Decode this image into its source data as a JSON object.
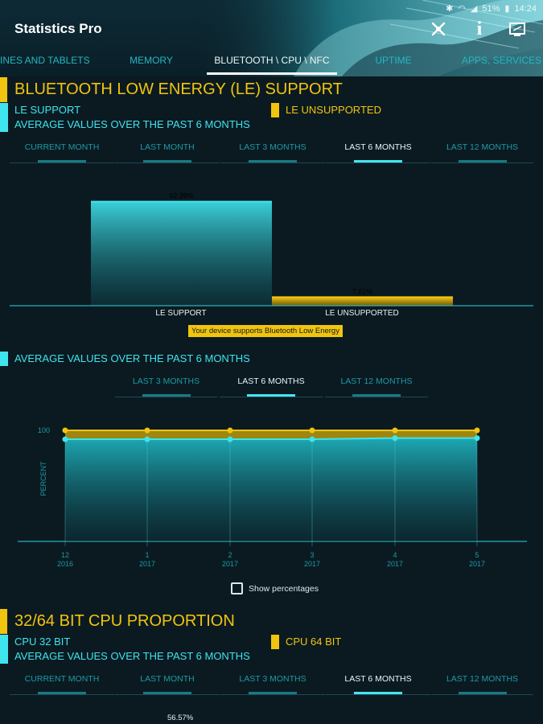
{
  "status_bar": {
    "battery": "51%",
    "time": "14:24"
  },
  "app": {
    "title": "Statistics Pro"
  },
  "actions": [
    {
      "name": "tools-icon",
      "glyph": "✱"
    },
    {
      "name": "info-icon",
      "glyph": "i"
    },
    {
      "name": "screen-icon",
      "glyph": "▣"
    }
  ],
  "tabs": [
    "INES AND TABLETS",
    "MEMORY",
    "BLUETOOTH \\ CPU \\ NFC",
    "UPTIME",
    "APPS, SERVICES"
  ],
  "active_tab": 2,
  "colors": {
    "accent_cyan": "#3fe4ee",
    "accent_yellow": "#f1c40f",
    "background": "#0b1a21"
  },
  "section1": {
    "title": "BLUETOOTH LOW ENERGY (LE) SUPPORT",
    "legend_a": "LE SUPPORT",
    "legend_b": "LE UNSUPPORTED",
    "subtitle": "AVERAGE VALUES OVER THE PAST 6 MONTHS",
    "periods": [
      "CURRENT MONTH",
      "LAST MONTH",
      "LAST 3 MONTHS",
      "LAST 6 MONTHS",
      "LAST 12 MONTHS"
    ],
    "active_period": 3,
    "note": "Your device supports Bluetooth Low Energy"
  },
  "section2": {
    "subtitle": "AVERAGE VALUES OVER THE PAST 6 MONTHS",
    "periods": [
      "LAST 3 MONTHS",
      "LAST 6 MONTHS",
      "LAST 12 MONTHS"
    ],
    "active_period": 1,
    "checkbox_label": "Show percentages",
    "checkbox_checked": false
  },
  "section3": {
    "title": "32/64 BIT CPU PROPORTION",
    "legend_a": "CPU 32 BIT",
    "legend_b": "CPU 64 BIT",
    "subtitle": "AVERAGE VALUES OVER THE PAST 6 MONTHS",
    "periods": [
      "CURRENT MONTH",
      "LAST MONTH",
      "LAST 3 MONTHS",
      "LAST 6 MONTHS",
      "LAST 12 MONTHS"
    ],
    "active_period": 3,
    "partial_value_label": "56.57%"
  },
  "chart_data": [
    {
      "type": "bar",
      "categories": [
        "LE SUPPORT",
        "LE UNSUPPORTED"
      ],
      "values": [
        92.39,
        7.61
      ],
      "value_labels": [
        "92.39%",
        "7.61%"
      ],
      "colors": [
        "#3fe4ee",
        "#f1c40f"
      ],
      "ylim": [
        0,
        100
      ]
    },
    {
      "type": "area",
      "x": [
        [
          "12",
          "2016"
        ],
        [
          "1",
          "2017"
        ],
        [
          "2",
          "2017"
        ],
        [
          "3",
          "2017"
        ],
        [
          "4",
          "2017"
        ],
        [
          "5",
          "2017"
        ]
      ],
      "series": [
        {
          "name": "LE UNSUPPORTED",
          "color": "#f1c40f",
          "values": [
            100,
            100,
            100,
            100,
            100,
            100
          ]
        },
        {
          "name": "LE SUPPORT",
          "color": "#3fe4ee",
          "values": [
            92,
            92,
            92,
            92,
            93,
            93
          ]
        }
      ],
      "ylabel": "PERCENT",
      "yticks": [
        "100"
      ],
      "ylim": [
        0,
        100
      ]
    }
  ]
}
